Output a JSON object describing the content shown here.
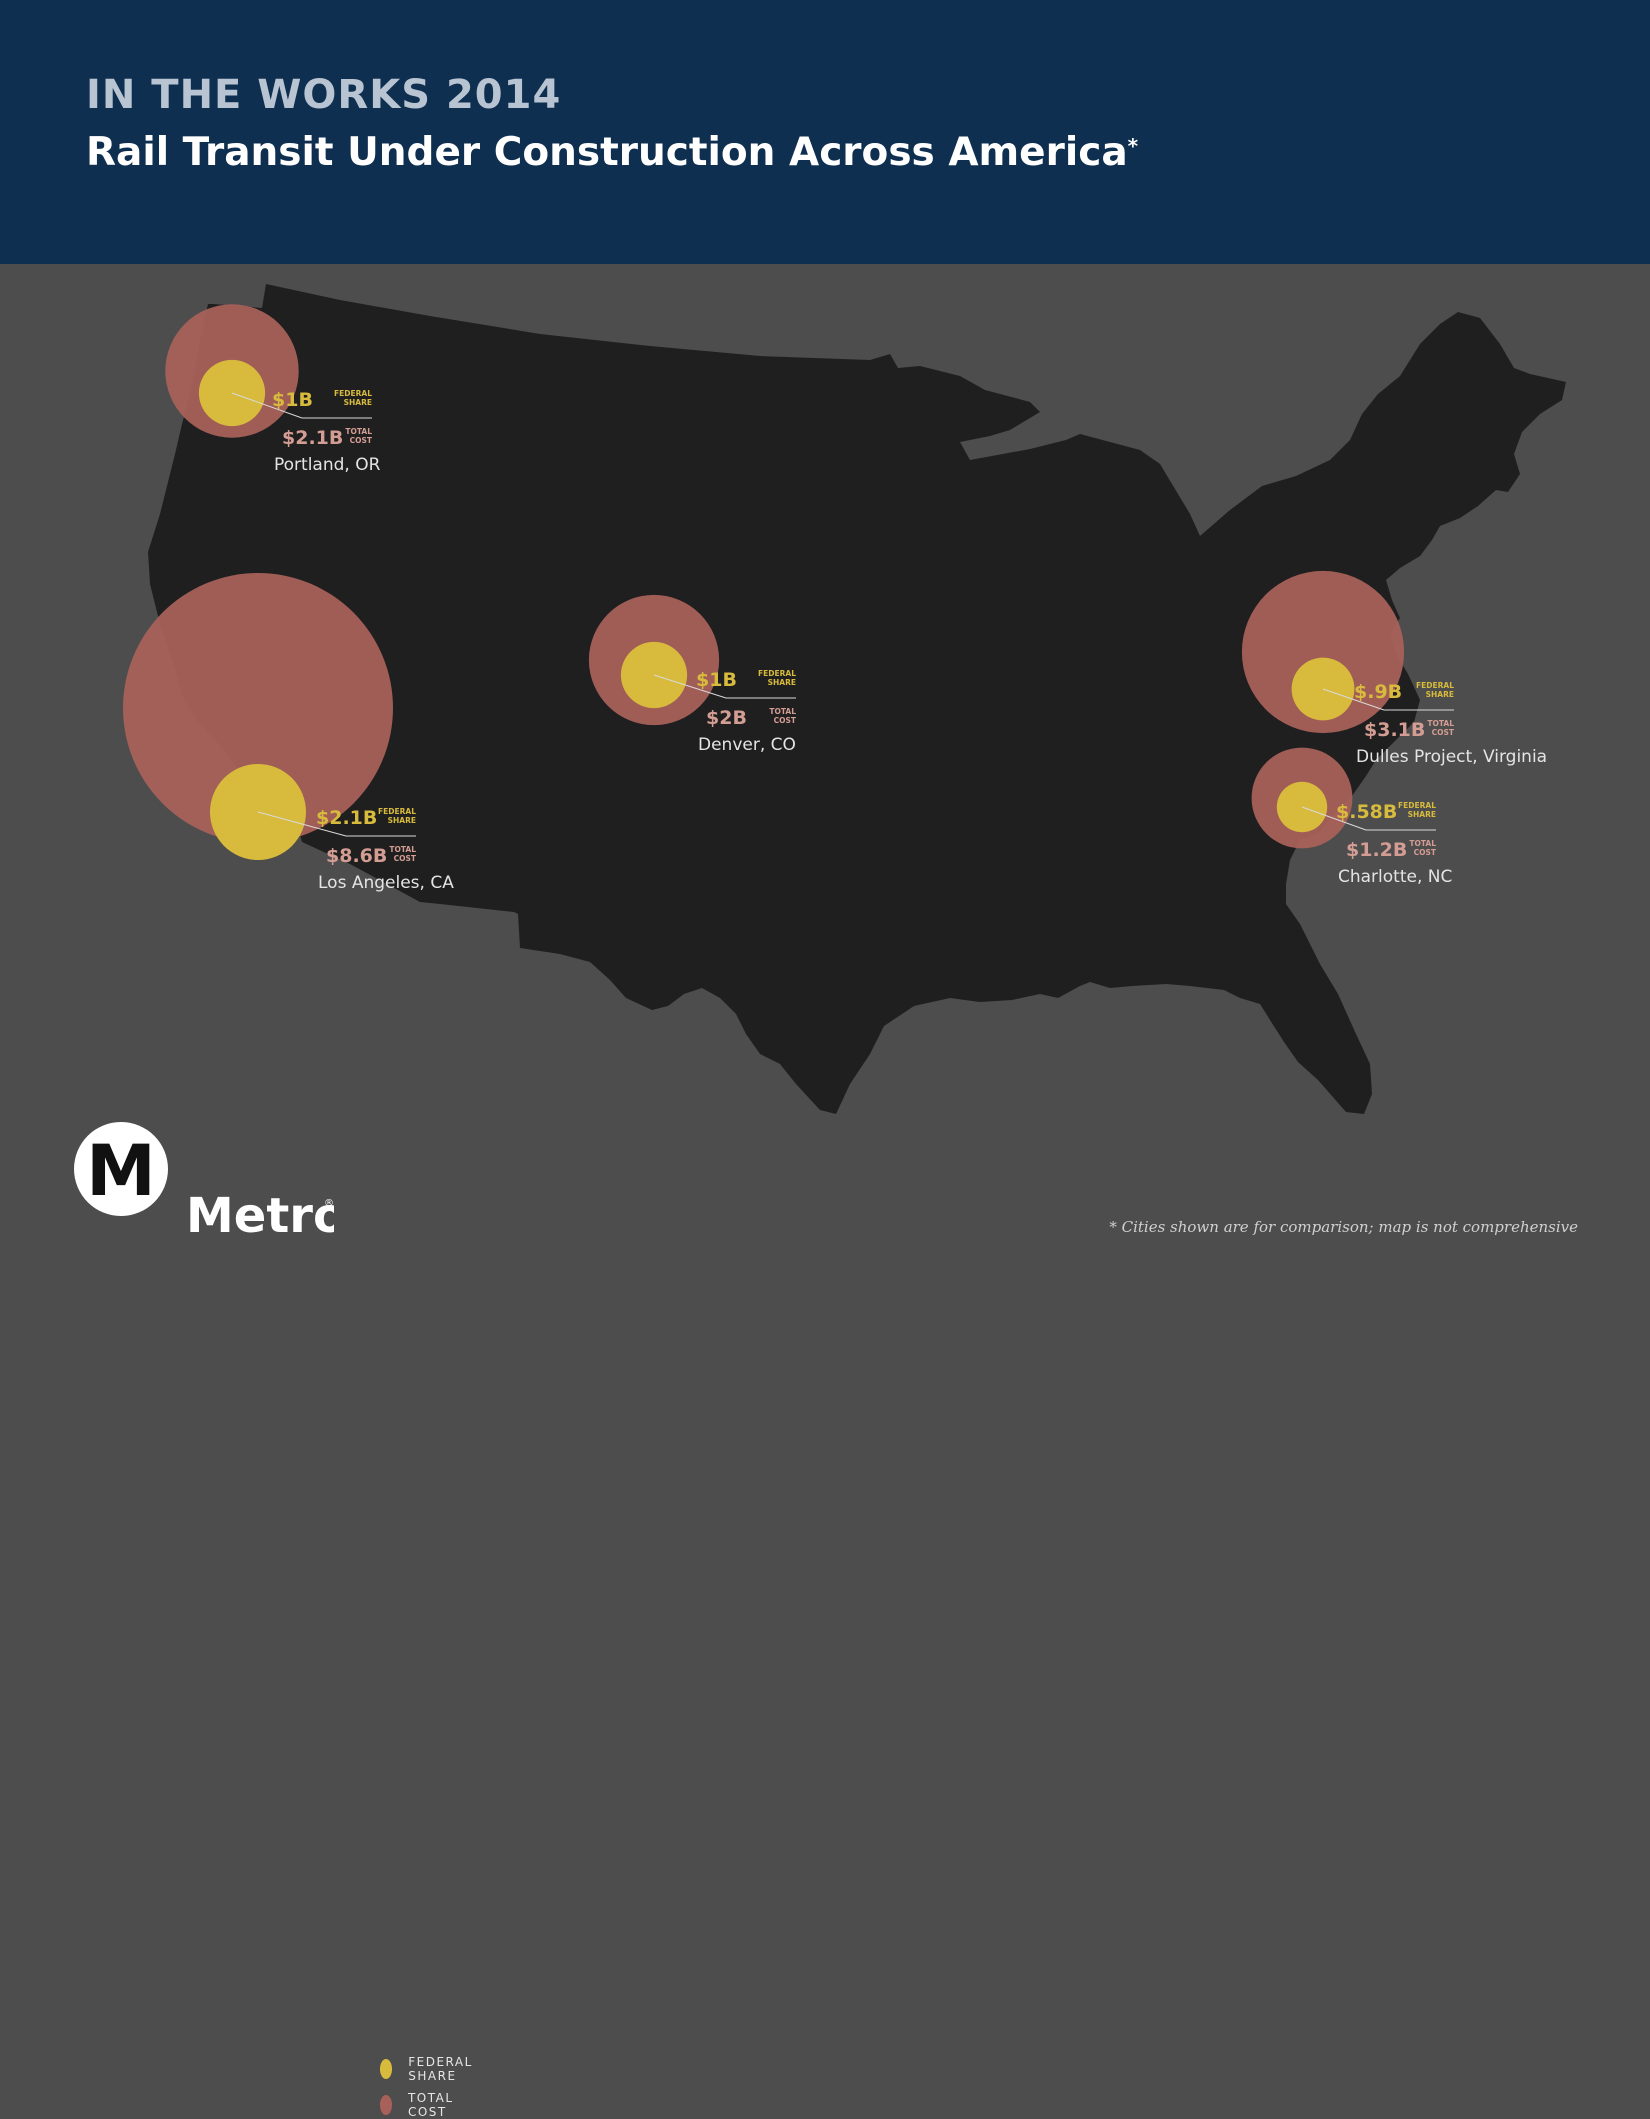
{
  "header": {
    "kicker": "IN THE WORKS 2014",
    "title": "Rail Transit Under Construction Across America",
    "title_mark": "*"
  },
  "colors": {
    "header_bg": "#0f2f50",
    "map_bg": "#4d4d4d",
    "land": "#1f1f1f",
    "federal": "#d8bb3c",
    "total": "#a8615a"
  },
  "units": {
    "federal": "FEDERAL SHARE",
    "total": "TOTAL COST"
  },
  "unit_lines": {
    "federal": [
      "FEDERAL",
      "SHARE"
    ],
    "total": [
      "TOTAL",
      "COST"
    ]
  },
  "projects": [
    {
      "city": "Portland, OR",
      "federal": "$1B",
      "total": "$2.1B",
      "federal_b": 1.0,
      "total_b": 2.1
    },
    {
      "city": "Los Angeles, CA",
      "federal": "$2.1B",
      "total": "$8.6B",
      "federal_b": 2.1,
      "total_b": 8.6
    },
    {
      "city": "Denver, CO",
      "federal": "$1B",
      "total": "$2B",
      "federal_b": 1.0,
      "total_b": 2.0
    },
    {
      "city": "Dulles Project, Virginia",
      "federal": "$.9B",
      "total": "$3.1B",
      "federal_b": 0.9,
      "total_b": 3.1
    },
    {
      "city": "Charlotte, NC",
      "federal": "$.58B",
      "total": "$1.2B",
      "federal_b": 0.58,
      "total_b": 1.2
    }
  ],
  "legend": {
    "federal": "FEDERAL SHARE",
    "total": "TOTAL COST"
  },
  "brand": {
    "logo_letter": "M",
    "name": "Metro",
    "mark": "®"
  },
  "footnote": "* Cities shown are for comparison; map is not comprehensive"
}
